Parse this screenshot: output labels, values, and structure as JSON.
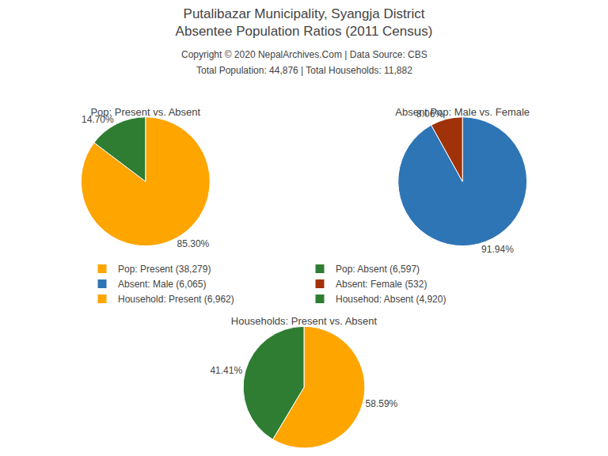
{
  "title": "Putalibazar Municipality, Syangja District\nAbsentee Population Ratios (2011 Census)",
  "subtitle": "Copyright © 2020 NepalArchives.Com | Data Source: CBS",
  "annotations": [
    "Total Population: 44,876 | Total Households: 11,882"
  ],
  "legend": "center",
  "chart_data": [
    {
      "type": "pie",
      "title": "Pop: Present vs. Absent",
      "categories": [
        "Pop: Present (38,279)",
        "Pop: Absent (6,597)"
      ],
      "values": [
        85.3,
        14.7
      ],
      "value_labels": [
        "85.30%",
        "14.70%"
      ],
      "colors": [
        "#FFA500",
        "#2E7D32"
      ],
      "data_labels": true
    },
    {
      "type": "pie",
      "title": "Absent Pop: Male vs. Female",
      "categories": [
        "Absent: Male (6,065)",
        "Absent: Female (532)"
      ],
      "values": [
        91.94,
        8.06
      ],
      "value_labels": [
        "91.94%",
        "8.06%"
      ],
      "colors": [
        "#2E75B6",
        "#A0320A"
      ],
      "data_labels": true
    },
    {
      "type": "pie",
      "title": "Households: Present vs. Absent",
      "categories": [
        "Household: Present (6,962)",
        "Househod: Absent (4,920)"
      ],
      "values": [
        58.59,
        41.41
      ],
      "value_labels": [
        "58.59%",
        "41.41%"
      ],
      "colors": [
        "#FFA500",
        "#2E7D32"
      ],
      "data_labels": true
    }
  ]
}
